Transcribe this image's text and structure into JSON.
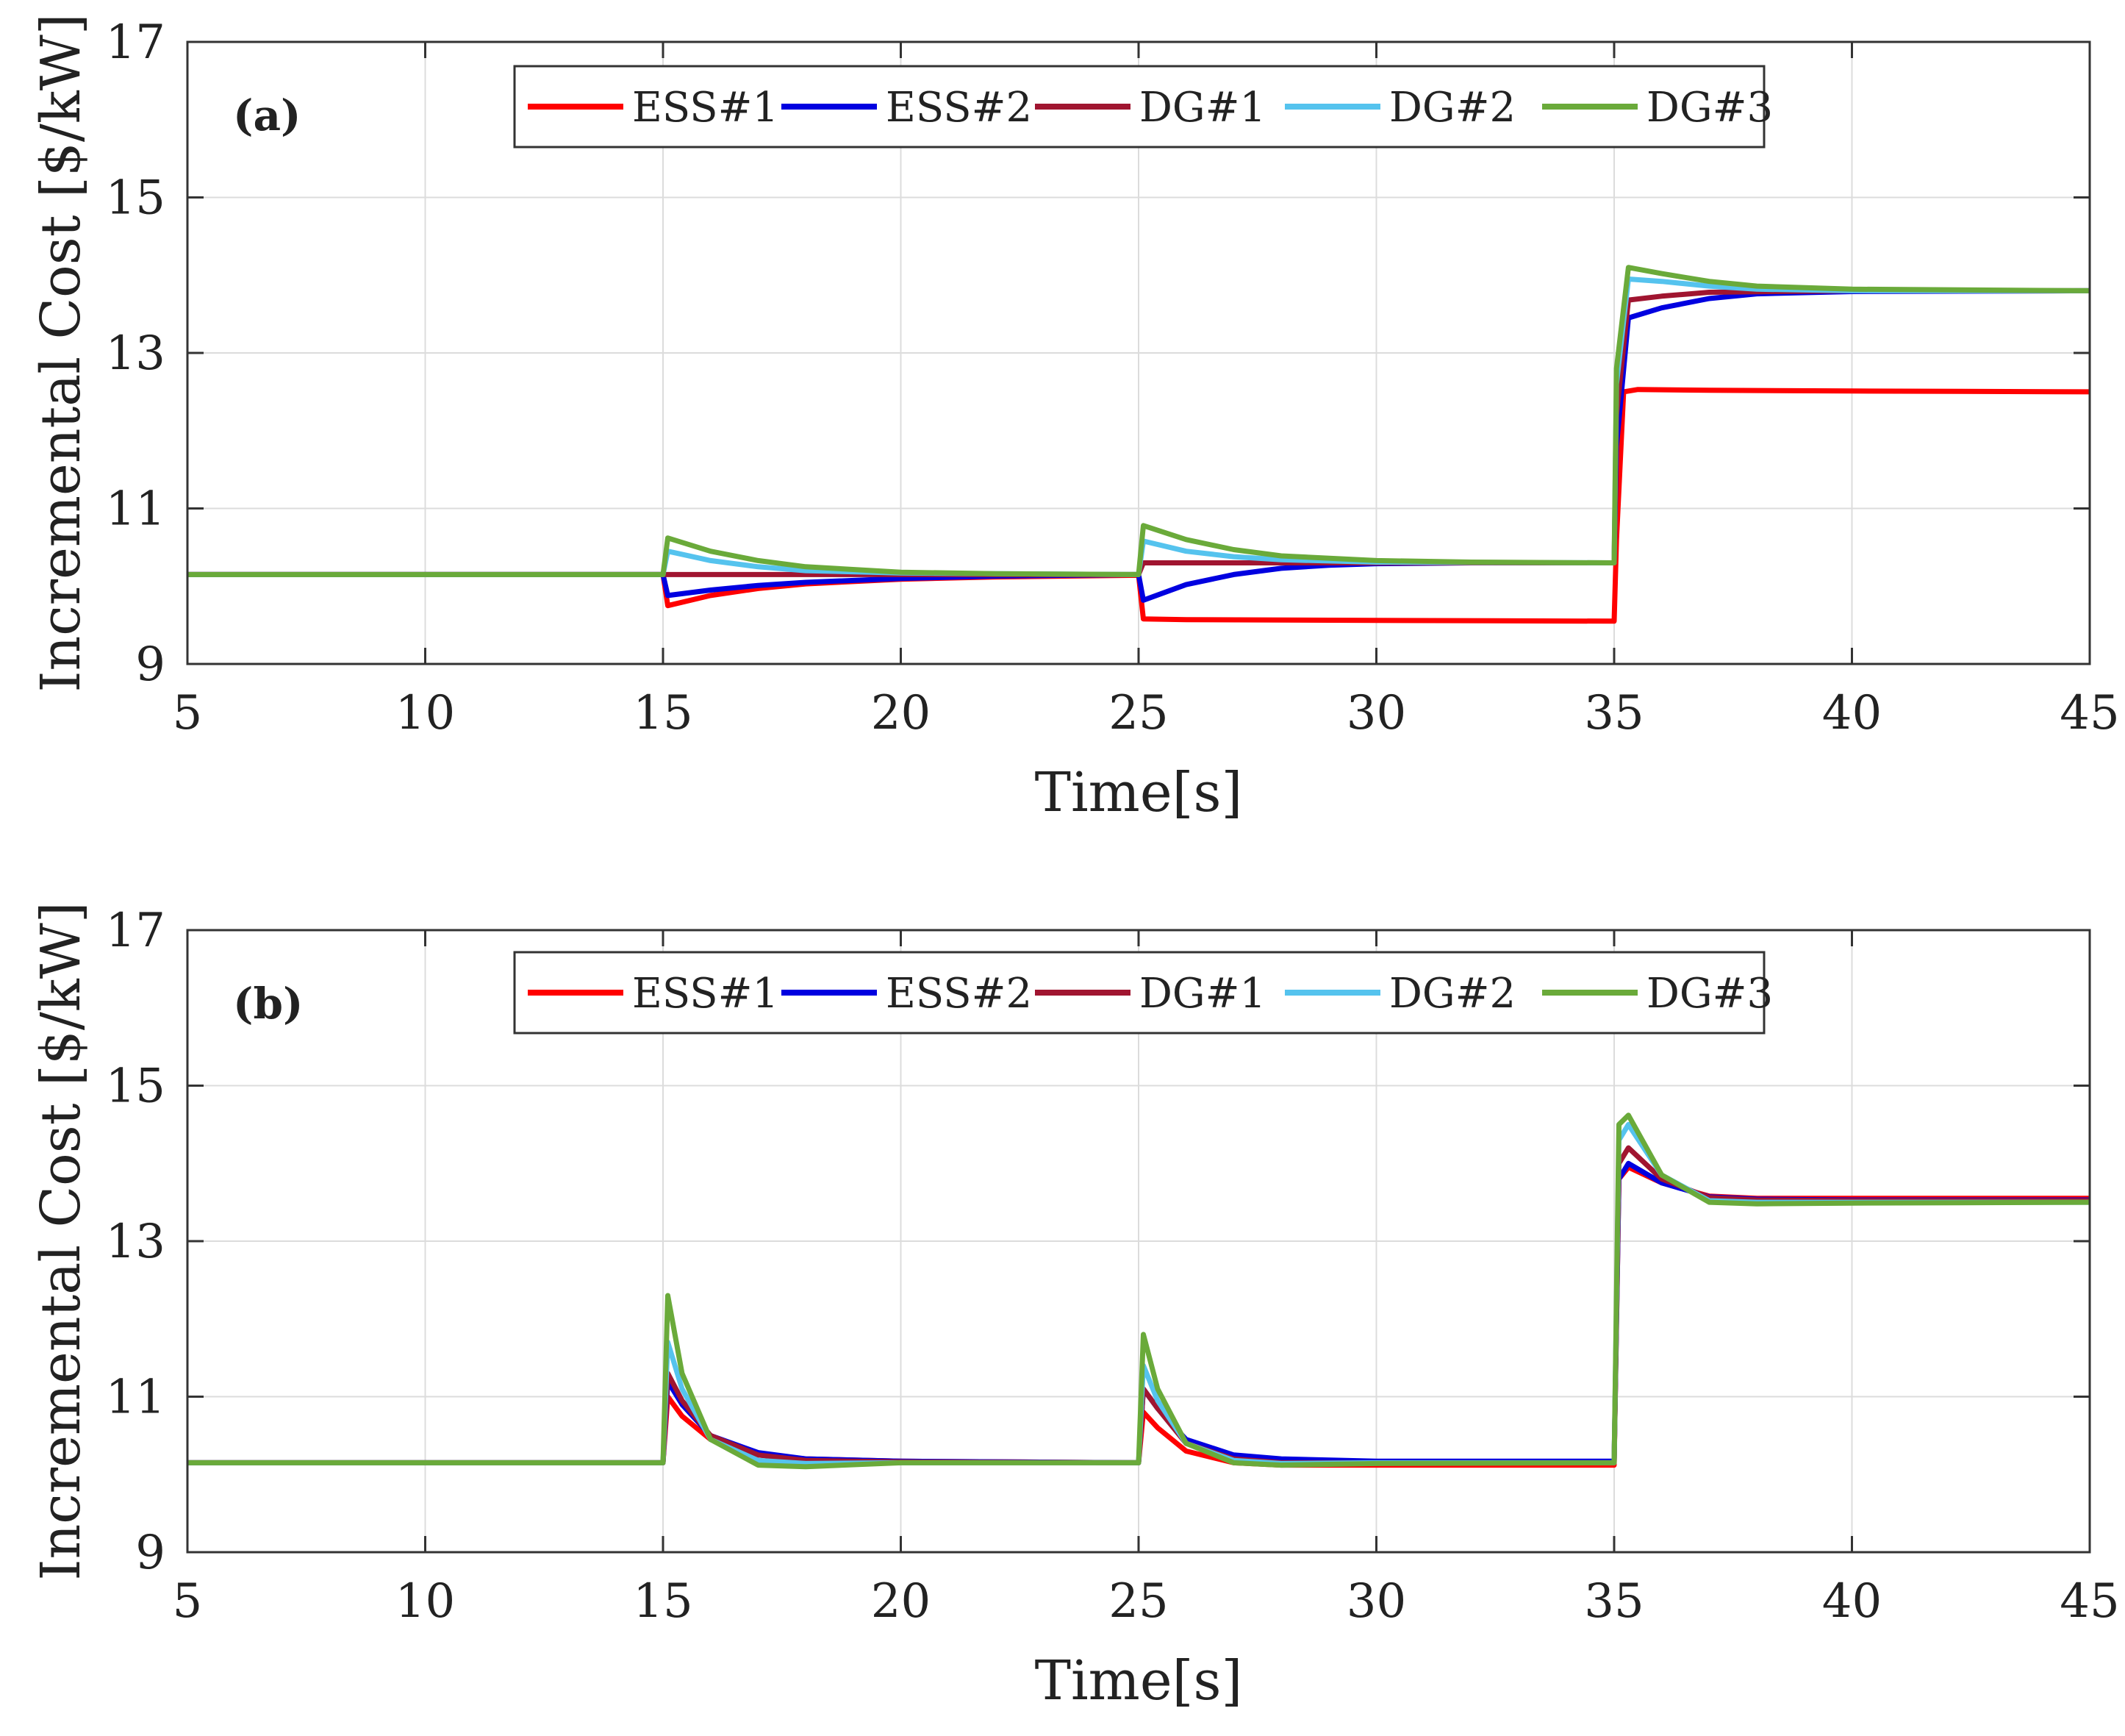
{
  "chart_data": [
    {
      "type": "line",
      "panel_label": "(a)",
      "xlabel": "Time[s]",
      "ylabel": "Incremental Cost [$/kW]",
      "xlim": [
        5,
        45
      ],
      "ylim": [
        9,
        17
      ],
      "x_ticks": [
        "5",
        "10",
        "15",
        "20",
        "25",
        "30",
        "35",
        "40",
        "45"
      ],
      "y_ticks": [
        "9",
        "11",
        "13",
        "15",
        "17"
      ],
      "grid": true,
      "legend_position": "top-center",
      "series": [
        {
          "name": "ESS#1",
          "color": "#ff0000",
          "points": [
            [
              5,
              10.15
            ],
            [
              15,
              10.15
            ],
            [
              15.1,
              9.75
            ],
            [
              16,
              9.88
            ],
            [
              17,
              9.97
            ],
            [
              18,
              10.03
            ],
            [
              20,
              10.09
            ],
            [
              22,
              10.12
            ],
            [
              25,
              10.14
            ],
            [
              25.1,
              9.58
            ],
            [
              26,
              9.57
            ],
            [
              30,
              9.56
            ],
            [
              35,
              9.55
            ],
            [
              35.05,
              10.6
            ],
            [
              35.2,
              12.5
            ],
            [
              35.5,
              12.53
            ],
            [
              37,
              12.52
            ],
            [
              40,
              12.51
            ],
            [
              45,
              12.5
            ]
          ]
        },
        {
          "name": "ESS#2",
          "color": "#0000e0",
          "points": [
            [
              5,
              10.15
            ],
            [
              15,
              10.15
            ],
            [
              15.1,
              9.88
            ],
            [
              16,
              9.95
            ],
            [
              17,
              10.01
            ],
            [
              18,
              10.05
            ],
            [
              20,
              10.1
            ],
            [
              22,
              10.13
            ],
            [
              25,
              10.15
            ],
            [
              25.1,
              9.82
            ],
            [
              26,
              10.02
            ],
            [
              27,
              10.15
            ],
            [
              28,
              10.23
            ],
            [
              29,
              10.27
            ],
            [
              30,
              10.29
            ],
            [
              32,
              10.3
            ],
            [
              35,
              10.3
            ],
            [
              35.05,
              11.8
            ],
            [
              35.3,
              13.45
            ],
            [
              36,
              13.58
            ],
            [
              37,
              13.7
            ],
            [
              38,
              13.76
            ],
            [
              40,
              13.79
            ],
            [
              45,
              13.8
            ]
          ]
        },
        {
          "name": "DG#1",
          "color": "#a01530",
          "points": [
            [
              5,
              10.15
            ],
            [
              15,
              10.15
            ],
            [
              15.1,
              10.15
            ],
            [
              20,
              10.15
            ],
            [
              25,
              10.15
            ],
            [
              25.1,
              10.3
            ],
            [
              26,
              10.3
            ],
            [
              35,
              10.3
            ],
            [
              35.05,
              12.2
            ],
            [
              35.3,
              13.68
            ],
            [
              36,
              13.73
            ],
            [
              37,
              13.78
            ],
            [
              40,
              13.8
            ],
            [
              45,
              13.8
            ]
          ]
        },
        {
          "name": "DG#2",
          "color": "#55c3ee",
          "points": [
            [
              5,
              10.15
            ],
            [
              15,
              10.15
            ],
            [
              15.1,
              10.45
            ],
            [
              16,
              10.33
            ],
            [
              17,
              10.25
            ],
            [
              18,
              10.2
            ],
            [
              20,
              10.17
            ],
            [
              22,
              10.16
            ],
            [
              25,
              10.15
            ],
            [
              25.1,
              10.58
            ],
            [
              26,
              10.45
            ],
            [
              27,
              10.38
            ],
            [
              28,
              10.34
            ],
            [
              30,
              10.31
            ],
            [
              35,
              10.3
            ],
            [
              35.05,
              12.6
            ],
            [
              35.3,
              13.95
            ],
            [
              36,
              13.92
            ],
            [
              37,
              13.86
            ],
            [
              38,
              13.82
            ],
            [
              40,
              13.8
            ],
            [
              45,
              13.8
            ]
          ]
        },
        {
          "name": "DG#3",
          "color": "#6aaa3a",
          "points": [
            [
              5,
              10.15
            ],
            [
              15,
              10.15
            ],
            [
              15.1,
              10.62
            ],
            [
              16,
              10.45
            ],
            [
              17,
              10.33
            ],
            [
              18,
              10.25
            ],
            [
              20,
              10.18
            ],
            [
              22,
              10.16
            ],
            [
              25,
              10.15
            ],
            [
              25.1,
              10.78
            ],
            [
              26,
              10.6
            ],
            [
              27,
              10.47
            ],
            [
              28,
              10.39
            ],
            [
              30,
              10.33
            ],
            [
              32,
              10.31
            ],
            [
              35,
              10.3
            ],
            [
              35.05,
              12.8
            ],
            [
              35.3,
              14.1
            ],
            [
              36,
              14.02
            ],
            [
              37,
              13.92
            ],
            [
              38,
              13.86
            ],
            [
              40,
              13.82
            ],
            [
              45,
              13.8
            ]
          ]
        }
      ]
    },
    {
      "type": "line",
      "panel_label": "(b)",
      "xlabel": "Time[s]",
      "ylabel": "Incremental Cost [$/kW]",
      "xlim": [
        5,
        45
      ],
      "ylim": [
        9,
        17
      ],
      "x_ticks": [
        "5",
        "10",
        "15",
        "20",
        "25",
        "30",
        "35",
        "40",
        "45"
      ],
      "y_ticks": [
        "9",
        "11",
        "13",
        "15",
        "17"
      ],
      "grid": true,
      "legend_position": "top-center",
      "series": [
        {
          "name": "ESS#1",
          "color": "#ff0000",
          "points": [
            [
              5,
              10.15
            ],
            [
              15,
              10.15
            ],
            [
              15.1,
              11.0
            ],
            [
              15.4,
              10.75
            ],
            [
              16,
              10.45
            ],
            [
              17,
              10.25
            ],
            [
              18,
              10.2
            ],
            [
              20,
              10.17
            ],
            [
              25,
              10.15
            ],
            [
              25.1,
              10.8
            ],
            [
              25.4,
              10.6
            ],
            [
              26,
              10.3
            ],
            [
              27,
              10.15
            ],
            [
              28,
              10.12
            ],
            [
              30,
              10.12
            ],
            [
              35,
              10.12
            ],
            [
              35.1,
              13.8
            ],
            [
              35.3,
              13.95
            ],
            [
              36,
              13.75
            ],
            [
              37,
              13.58
            ],
            [
              38,
              13.55
            ],
            [
              40,
              13.55
            ],
            [
              45,
              13.55
            ]
          ]
        },
        {
          "name": "ESS#2",
          "color": "#0000e0",
          "points": [
            [
              5,
              10.15
            ],
            [
              15,
              10.15
            ],
            [
              15.1,
              11.2
            ],
            [
              15.4,
              10.9
            ],
            [
              16,
              10.5
            ],
            [
              17,
              10.28
            ],
            [
              18,
              10.2
            ],
            [
              20,
              10.17
            ],
            [
              25,
              10.15
            ],
            [
              25.1,
              11.1
            ],
            [
              25.4,
              10.85
            ],
            [
              26,
              10.45
            ],
            [
              27,
              10.25
            ],
            [
              28,
              10.2
            ],
            [
              30,
              10.17
            ],
            [
              35,
              10.17
            ],
            [
              35.1,
              13.8
            ],
            [
              35.3,
              14.0
            ],
            [
              36,
              13.75
            ],
            [
              37,
              13.57
            ],
            [
              38,
              13.54
            ],
            [
              40,
              13.53
            ],
            [
              45,
              13.53
            ]
          ]
        },
        {
          "name": "DG#1",
          "color": "#a01530",
          "points": [
            [
              5,
              10.15
            ],
            [
              15,
              10.15
            ],
            [
              15.1,
              11.3
            ],
            [
              15.4,
              10.95
            ],
            [
              16,
              10.5
            ],
            [
              17,
              10.25
            ],
            [
              18,
              10.18
            ],
            [
              20,
              10.16
            ],
            [
              25,
              10.15
            ],
            [
              25.1,
              11.1
            ],
            [
              25.4,
              10.85
            ],
            [
              26,
              10.4
            ],
            [
              27,
              10.2
            ],
            [
              28,
              10.15
            ],
            [
              30,
              10.15
            ],
            [
              35,
              10.15
            ],
            [
              35.1,
              14.0
            ],
            [
              35.3,
              14.2
            ],
            [
              36,
              13.8
            ],
            [
              37,
              13.56
            ],
            [
              38,
              13.53
            ],
            [
              40,
              13.52
            ],
            [
              45,
              13.52
            ]
          ]
        },
        {
          "name": "DG#2",
          "color": "#55c3ee",
          "points": [
            [
              5,
              10.15
            ],
            [
              15,
              10.15
            ],
            [
              15.1,
              11.7
            ],
            [
              15.4,
              11.1
            ],
            [
              16,
              10.45
            ],
            [
              17,
              10.18
            ],
            [
              18,
              10.14
            ],
            [
              20,
              10.15
            ],
            [
              25,
              10.15
            ],
            [
              25.1,
              11.4
            ],
            [
              25.4,
              10.95
            ],
            [
              26,
              10.4
            ],
            [
              27,
              10.18
            ],
            [
              28,
              10.14
            ],
            [
              30,
              10.15
            ],
            [
              35,
              10.15
            ],
            [
              35.1,
              14.3
            ],
            [
              35.3,
              14.5
            ],
            [
              36,
              13.85
            ],
            [
              37,
              13.52
            ],
            [
              38,
              13.5
            ],
            [
              40,
              13.5
            ],
            [
              45,
              13.5
            ]
          ]
        },
        {
          "name": "DG#3",
          "color": "#6aaa3a",
          "points": [
            [
              5,
              10.15
            ],
            [
              15,
              10.15
            ],
            [
              15.1,
              12.3
            ],
            [
              15.4,
              11.3
            ],
            [
              16,
              10.45
            ],
            [
              17,
              10.12
            ],
            [
              18,
              10.1
            ],
            [
              20,
              10.15
            ],
            [
              25,
              10.15
            ],
            [
              25.1,
              11.8
            ],
            [
              25.4,
              11.1
            ],
            [
              26,
              10.4
            ],
            [
              27,
              10.15
            ],
            [
              28,
              10.12
            ],
            [
              30,
              10.14
            ],
            [
              35,
              10.15
            ],
            [
              35.1,
              14.5
            ],
            [
              35.3,
              14.62
            ],
            [
              36,
              13.85
            ],
            [
              37,
              13.5
            ],
            [
              38,
              13.48
            ],
            [
              40,
              13.49
            ],
            [
              45,
              13.5
            ]
          ]
        }
      ]
    }
  ]
}
